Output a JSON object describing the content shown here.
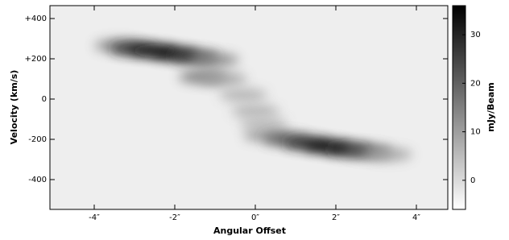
{
  "chart_data": {
    "type": "pv-diagram",
    "xlabel": "Angular Offset",
    "ylabel": "Velocity (km/s)",
    "colorbar_label": "mJy/Beam",
    "x": [
      -3.4,
      -3.0,
      -2.5,
      -2.0,
      -1.5,
      -1.0,
      -1.3,
      -0.8,
      -0.3,
      0.0,
      0.2,
      0.3,
      0.8,
      1.3,
      1.8,
      2.3,
      2.8,
      3.3
    ],
    "y": [
      265,
      250,
      240,
      225,
      210,
      195,
      110,
      100,
      20,
      -60,
      -120,
      -180,
      -200,
      -220,
      -235,
      -250,
      -260,
      -275
    ],
    "values": [
      15,
      30,
      34,
      36,
      28,
      15,
      18,
      10,
      8,
      8,
      6,
      12,
      22,
      30,
      36,
      33,
      22,
      10
    ],
    "xlim": [
      -5.1,
      4.78
    ],
    "ylim": [
      -548,
      464
    ],
    "xticks": [
      {
        "value": -4,
        "label": "-4″"
      },
      {
        "value": -2,
        "label": "-2″"
      },
      {
        "value": 0,
        "label": "0″"
      },
      {
        "value": 2,
        "label": "2″"
      },
      {
        "value": 4,
        "label": "4″"
      }
    ],
    "yticks": [
      {
        "value": 400,
        "label": "+400"
      },
      {
        "value": 200,
        "label": "+200"
      },
      0,
      -200,
      -400
    ],
    "clim": [
      -6,
      36
    ],
    "cticks": [
      0,
      10,
      20,
      30
    ],
    "colormap": "gray_r"
  }
}
